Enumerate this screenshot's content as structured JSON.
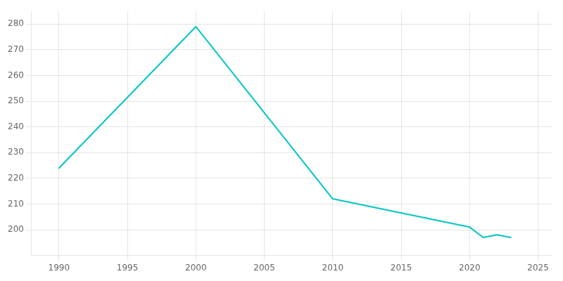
{
  "chart_data": {
    "type": "line",
    "x": [
      1990,
      2000,
      2010,
      2020,
      2021,
      2022,
      2023
    ],
    "values": [
      224,
      279,
      212,
      201,
      197,
      198,
      197
    ],
    "color": "#00c5c8",
    "xlim": [
      1988,
      2026
    ],
    "xticks": [
      1990,
      1995,
      2000,
      2005,
      2010,
      2015,
      2020,
      2025
    ],
    "ylim": [
      190,
      285
    ],
    "yticks": [
      200,
      210,
      220,
      230,
      240,
      250,
      260,
      270,
      280
    ],
    "grid": true
  }
}
